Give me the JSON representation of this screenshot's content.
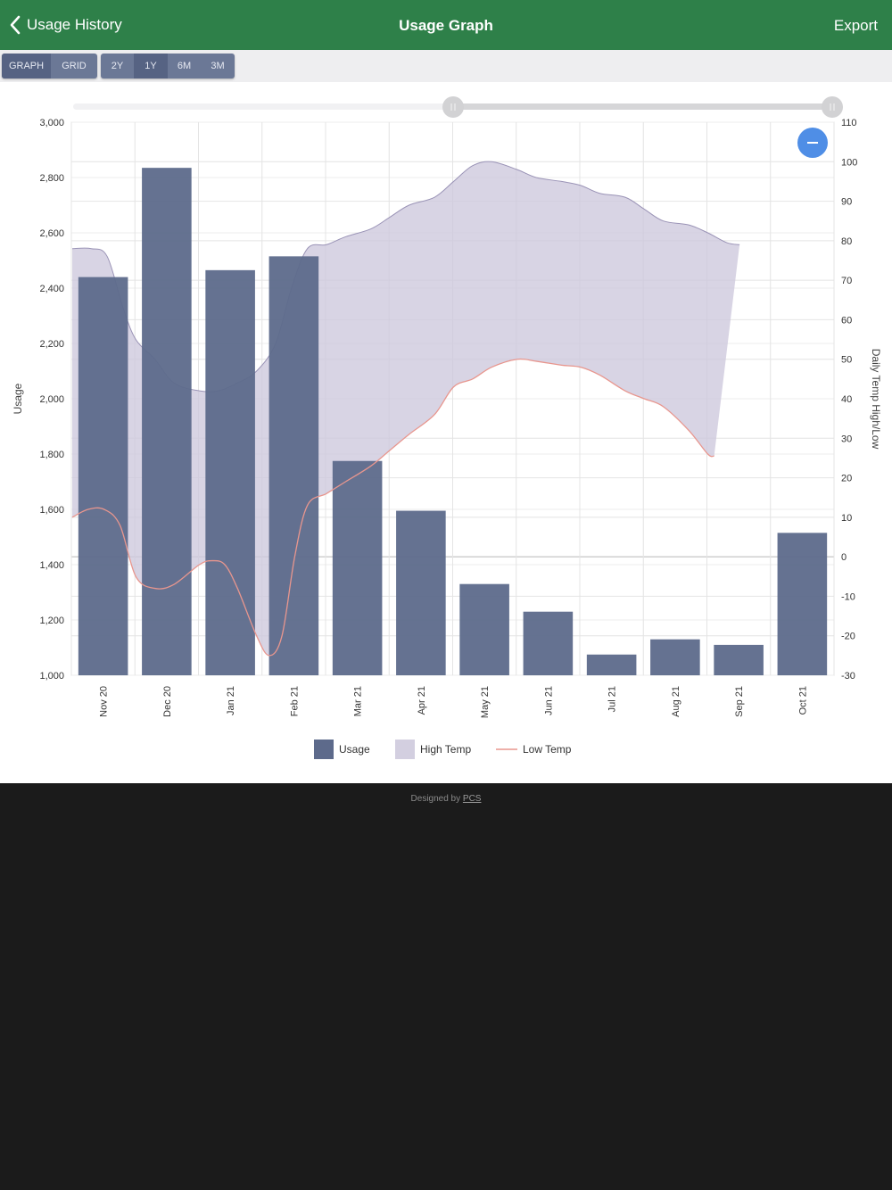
{
  "navbar": {
    "back_label": "Usage History",
    "title": "Usage Graph",
    "export_label": "Export"
  },
  "toolbar": {
    "view_options": [
      "GRAPH",
      "GRID"
    ],
    "view_selected": "GRAPH",
    "range_options": [
      "2Y",
      "1Y",
      "6M",
      "3M"
    ],
    "range_selected": "1Y"
  },
  "chart_data": {
    "type": "bar",
    "categories": [
      "Nov 20",
      "Dec 20",
      "Jan 21",
      "Feb 21",
      "Mar 21",
      "Apr 21",
      "May 21",
      "Jun 21",
      "Jul 21",
      "Aug 21",
      "Sep 21",
      "Oct 21"
    ],
    "ylabel": "Usage",
    "y2label": "Daily Temp High/Low",
    "ylim": [
      1000,
      3000
    ],
    "y2lim": [
      -30,
      110
    ],
    "yticks": [
      1000,
      1200,
      1400,
      1600,
      1800,
      2000,
      2200,
      2400,
      2600,
      2800,
      3000
    ],
    "y2ticks": [
      -30,
      -20,
      -10,
      0,
      10,
      20,
      30,
      40,
      50,
      60,
      70,
      80,
      90,
      100,
      110
    ],
    "usage": [
      2440,
      2835,
      2465,
      2515,
      1775,
      1595,
      1330,
      1230,
      1075,
      1130,
      1110,
      1515
    ],
    "high_temp": [
      [
        0,
        78
      ],
      [
        0.3,
        78
      ],
      [
        0.55,
        76
      ],
      [
        0.8,
        63
      ],
      [
        1,
        55
      ],
      [
        1.3,
        50
      ],
      [
        1.6,
        44
      ],
      [
        2,
        42
      ],
      [
        2.3,
        42
      ],
      [
        2.6,
        44
      ],
      [
        2.9,
        47
      ],
      [
        3.2,
        54
      ],
      [
        3.45,
        68
      ],
      [
        3.7,
        78
      ],
      [
        4,
        79
      ],
      [
        4.3,
        81
      ],
      [
        4.7,
        83
      ],
      [
        5,
        86
      ],
      [
        5.3,
        89
      ],
      [
        5.7,
        91
      ],
      [
        6,
        95
      ],
      [
        6.3,
        99
      ],
      [
        6.6,
        100
      ],
      [
        7,
        98
      ],
      [
        7.3,
        96
      ],
      [
        7.7,
        95
      ],
      [
        8,
        94
      ],
      [
        8.3,
        92
      ],
      [
        8.7,
        91
      ],
      [
        9,
        88
      ],
      [
        9.3,
        85
      ],
      [
        9.7,
        84
      ],
      [
        10,
        82
      ],
      [
        10.3,
        79.5
      ],
      [
        10.5,
        79
      ]
    ],
    "low_temp": [
      [
        0,
        10
      ],
      [
        0.25,
        12
      ],
      [
        0.5,
        12
      ],
      [
        0.75,
        8
      ],
      [
        1,
        -5
      ],
      [
        1.3,
        -8
      ],
      [
        1.6,
        -7
      ],
      [
        2,
        -2
      ],
      [
        2.2,
        -1
      ],
      [
        2.4,
        -2
      ],
      [
        2.6,
        -8
      ],
      [
        2.9,
        -20
      ],
      [
        3.1,
        -25
      ],
      [
        3.3,
        -20
      ],
      [
        3.5,
        0
      ],
      [
        3.7,
        13
      ],
      [
        4,
        16
      ],
      [
        4.3,
        19
      ],
      [
        4.7,
        23
      ],
      [
        5,
        27
      ],
      [
        5.3,
        31
      ],
      [
        5.7,
        36
      ],
      [
        6,
        43
      ],
      [
        6.3,
        45
      ],
      [
        6.6,
        48
      ],
      [
        7,
        50
      ],
      [
        7.3,
        49.5
      ],
      [
        7.7,
        48.5
      ],
      [
        8,
        48
      ],
      [
        8.3,
        46
      ],
      [
        8.7,
        42
      ],
      [
        9,
        40
      ],
      [
        9.3,
        38
      ],
      [
        9.7,
        32
      ],
      [
        10,
        26
      ],
      [
        10.1,
        25.5
      ]
    ],
    "legend": [
      {
        "name": "Usage",
        "color": "#5d6a8b",
        "kind": "bar"
      },
      {
        "name": "High Temp",
        "color": "#d3cfe0",
        "kind": "area"
      },
      {
        "name": "Low Temp",
        "color": "#e8968e",
        "kind": "line"
      }
    ],
    "legend_position": "bottom",
    "grid": true
  },
  "footer": {
    "prefix": "Designed by",
    "link": "PCS"
  }
}
